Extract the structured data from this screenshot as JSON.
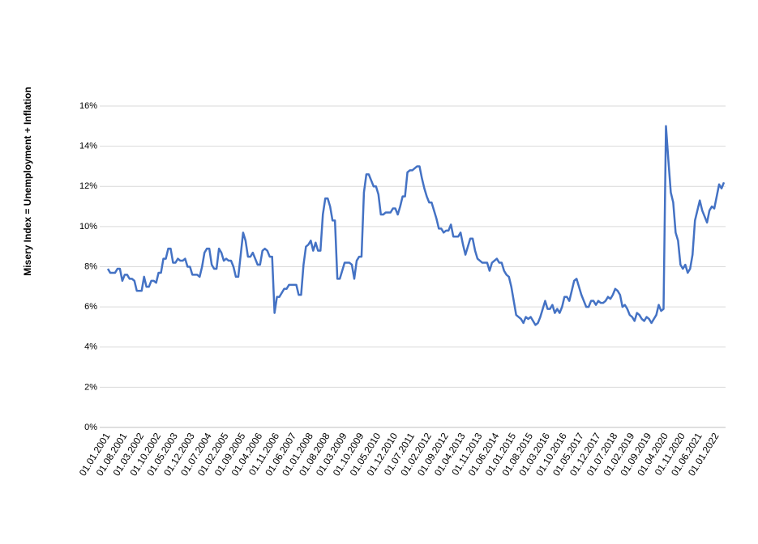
{
  "chart_data": {
    "type": "line",
    "y_label": "Misery Index = Unemployment + Inflation",
    "color": "#4472c4",
    "grid": true,
    "ylim": [
      0,
      16
    ],
    "yticks": [
      {
        "value": 0,
        "label": "0%"
      },
      {
        "value": 2,
        "label": "2%"
      },
      {
        "value": 4,
        "label": "4%"
      },
      {
        "value": 6,
        "label": "6%"
      },
      {
        "value": 8,
        "label": "8%"
      },
      {
        "value": 10,
        "label": "10%"
      },
      {
        "value": 12,
        "label": "12%"
      },
      {
        "value": 14,
        "label": "14%"
      },
      {
        "value": 16,
        "label": "16%"
      }
    ],
    "categories": [
      "01.01.2001",
      null,
      null,
      null,
      null,
      null,
      null,
      "01.08.2001",
      null,
      null,
      null,
      null,
      null,
      null,
      "01.03.2002",
      null,
      null,
      null,
      null,
      null,
      null,
      "01.10.2002",
      null,
      null,
      null,
      null,
      null,
      null,
      "01.05.2003",
      null,
      null,
      null,
      null,
      null,
      null,
      "01.12.2003",
      null,
      null,
      null,
      null,
      null,
      null,
      "01.07.2004",
      null,
      null,
      null,
      null,
      null,
      null,
      "01.02.2005",
      null,
      null,
      null,
      null,
      null,
      null,
      "01.09.2005",
      null,
      null,
      null,
      null,
      null,
      null,
      "01.04.2006",
      null,
      null,
      null,
      null,
      null,
      null,
      "01.11.2006",
      null,
      null,
      null,
      null,
      null,
      null,
      "01.06.2007",
      null,
      null,
      null,
      null,
      null,
      null,
      "01.01.2008",
      null,
      null,
      null,
      null,
      null,
      null,
      "01.08.2008",
      null,
      null,
      null,
      null,
      null,
      null,
      "01.03.2009",
      null,
      null,
      null,
      null,
      null,
      null,
      "01.10.2009",
      null,
      null,
      null,
      null,
      null,
      null,
      "01.05.2010",
      null,
      null,
      null,
      null,
      null,
      null,
      "01.12.2010",
      null,
      null,
      null,
      null,
      null,
      null,
      "01.07.2011",
      null,
      null,
      null,
      null,
      null,
      null,
      "01.02.2012",
      null,
      null,
      null,
      null,
      null,
      null,
      "01.09.2012",
      null,
      null,
      null,
      null,
      null,
      null,
      "01.04.2013",
      null,
      null,
      null,
      null,
      null,
      null,
      "01.11.2013",
      null,
      null,
      null,
      null,
      null,
      null,
      "01.06.2014",
      null,
      null,
      null,
      null,
      null,
      null,
      "01.01.2015",
      null,
      null,
      null,
      null,
      null,
      null,
      "01.08.2015",
      null,
      null,
      null,
      null,
      null,
      null,
      "01.03.2016",
      null,
      null,
      null,
      null,
      null,
      null,
      "01.10.2016",
      null,
      null,
      null,
      null,
      null,
      null,
      "01.05.2017",
      null,
      null,
      null,
      null,
      null,
      null,
      "01.12.2017",
      null,
      null,
      null,
      null,
      null,
      null,
      "01.07.2018",
      null,
      null,
      null,
      null,
      null,
      null,
      "01.02.2019",
      null,
      null,
      null,
      null,
      null,
      null,
      "01.09.2019",
      null,
      null,
      null,
      null,
      null,
      null,
      "01.04.2020",
      null,
      null,
      null,
      null,
      null,
      null,
      "01.11.2020",
      null,
      null,
      null,
      null,
      null,
      null,
      "01.06.2021",
      null,
      null,
      null,
      null,
      null,
      null,
      "01.01.2022",
      null,
      null,
      null
    ],
    "values": [
      7.9,
      7.7,
      7.7,
      7.7,
      7.9,
      7.9,
      7.3,
      7.6,
      7.6,
      7.4,
      7.4,
      7.3,
      6.8,
      6.8,
      6.8,
      7.5,
      7.0,
      7.0,
      7.3,
      7.3,
      7.2,
      7.7,
      7.7,
      8.4,
      8.4,
      8.9,
      8.9,
      8.2,
      8.2,
      8.4,
      8.3,
      8.3,
      8.4,
      8.0,
      8.0,
      7.6,
      7.6,
      7.6,
      7.5,
      8.0,
      8.7,
      8.9,
      8.9,
      8.1,
      7.9,
      7.9,
      8.9,
      8.7,
      8.3,
      8.4,
      8.3,
      8.3,
      8.0,
      7.5,
      7.5,
      8.6,
      9.7,
      9.3,
      8.5,
      8.5,
      8.7,
      8.4,
      8.1,
      8.1,
      8.8,
      8.9,
      8.8,
      8.5,
      8.5,
      5.7,
      6.5,
      6.5,
      6.7,
      6.9,
      6.9,
      7.1,
      7.1,
      7.1,
      7.1,
      6.6,
      6.6,
      8.1,
      9.0,
      9.1,
      9.3,
      8.8,
      9.2,
      8.8,
      8.8,
      10.6,
      11.4,
      11.4,
      11.0,
      10.3,
      10.3,
      7.4,
      7.4,
      7.8,
      8.2,
      8.2,
      8.2,
      8.1,
      7.4,
      8.3,
      8.5,
      8.5,
      11.7,
      12.6,
      12.6,
      12.3,
      12.0,
      12.0,
      11.6,
      10.6,
      10.6,
      10.7,
      10.7,
      10.7,
      10.9,
      10.9,
      10.6,
      11.0,
      11.5,
      11.5,
      12.7,
      12.8,
      12.8,
      12.9,
      13.0,
      13.0,
      12.4,
      11.9,
      11.5,
      11.2,
      11.2,
      10.8,
      10.4,
      9.9,
      9.9,
      9.7,
      9.8,
      9.8,
      10.1,
      9.5,
      9.5,
      9.5,
      9.7,
      9.1,
      8.6,
      9.0,
      9.4,
      9.4,
      8.8,
      8.4,
      8.3,
      8.2,
      8.2,
      8.2,
      7.8,
      8.2,
      8.3,
      8.4,
      8.2,
      8.2,
      7.8,
      7.6,
      7.5,
      7.0,
      6.3,
      5.6,
      5.5,
      5.4,
      5.2,
      5.5,
      5.4,
      5.5,
      5.3,
      5.1,
      5.2,
      5.5,
      5.9,
      6.3,
      5.9,
      5.9,
      6.1,
      5.7,
      5.9,
      5.7,
      6.0,
      6.5,
      6.5,
      6.3,
      6.8,
      7.3,
      7.4,
      7.0,
      6.6,
      6.3,
      6.0,
      6.0,
      6.3,
      6.3,
      6.1,
      6.3,
      6.2,
      6.2,
      6.3,
      6.5,
      6.4,
      6.6,
      6.9,
      6.8,
      6.6,
      6.0,
      6.1,
      5.9,
      5.6,
      5.5,
      5.3,
      5.7,
      5.6,
      5.4,
      5.3,
      5.5,
      5.4,
      5.2,
      5.4,
      5.6,
      6.1,
      5.8,
      5.9,
      15.0,
      13.3,
      11.7,
      11.2,
      9.7,
      9.3,
      8.1,
      7.9,
      8.1,
      7.7,
      7.9,
      8.6,
      10.3,
      10.8,
      11.3,
      10.8,
      10.5,
      10.2,
      10.8,
      11.0,
      10.9,
      11.5,
      12.1,
      11.9,
      12.2
    ]
  }
}
